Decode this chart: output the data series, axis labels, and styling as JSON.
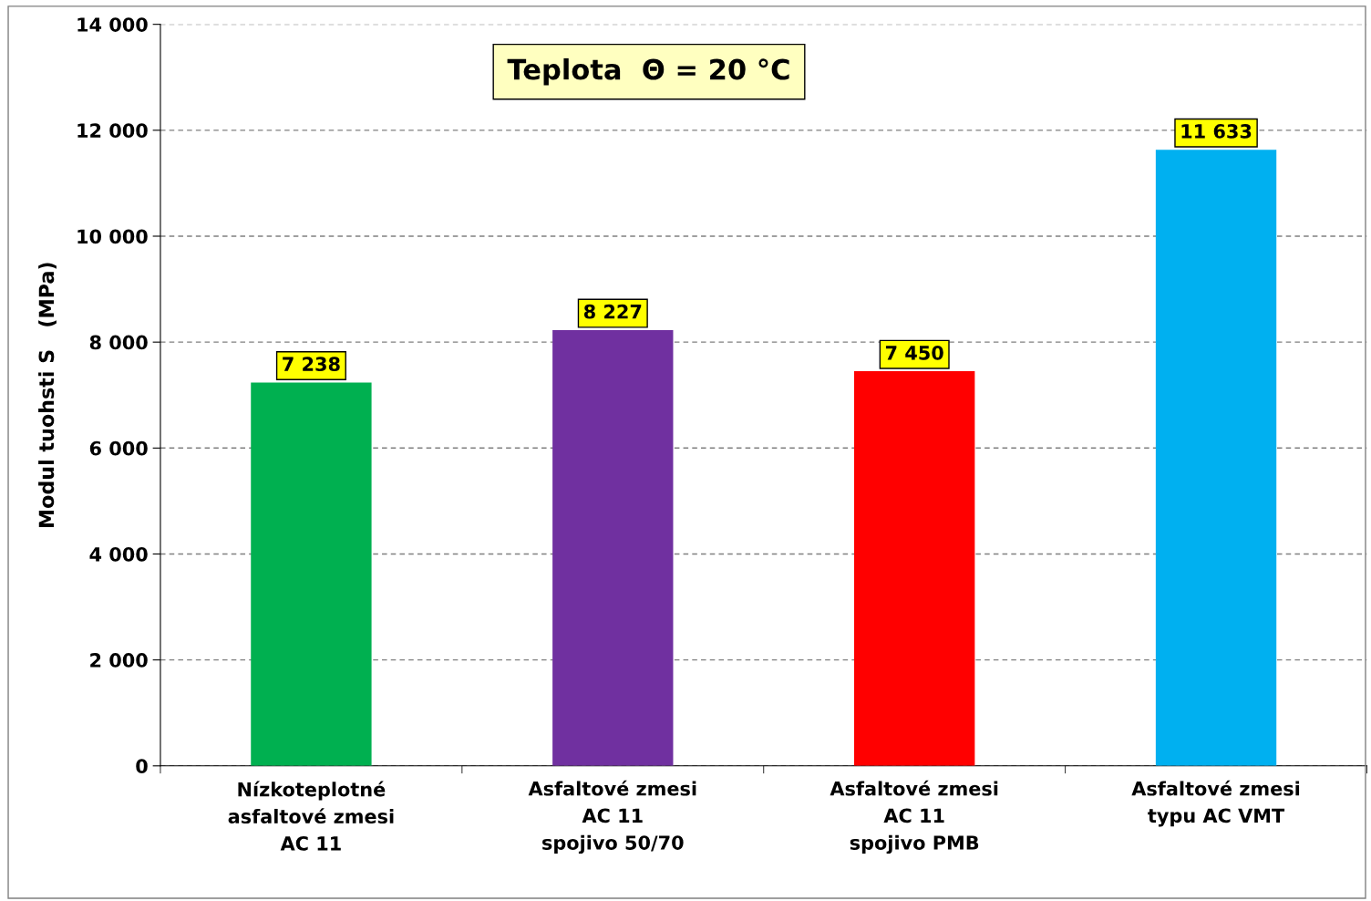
{
  "chart_data": {
    "type": "bar",
    "title": "Teplota  Θ = 20 °C",
    "ylabel": "Modul tuohsti S   (MPa)",
    "categories": [
      "Nízkoteplotné\nasfaltové zmesi\nAC 11",
      "Asfaltové zmesi\nAC 11\nspojivo 50/70",
      "Asfaltové zmesi\nAC 11\nspojivo PMB",
      "Asfaltové zmesi\ntypu AC VMT"
    ],
    "values": [
      7238,
      8227,
      7450,
      11633
    ],
    "colors": [
      "#00b050",
      "#7030a0",
      "#ff0000",
      "#00b0f0"
    ],
    "value_labels": [
      "7 238",
      "8 227",
      "7 450",
      "11 633"
    ],
    "ylim": [
      0,
      14000
    ],
    "yticks": [
      0,
      {
        "value": 2000,
        "label": "2 000"
      },
      {
        "value": 4000,
        "label": "4 000"
      },
      {
        "value": 6000,
        "label": "6 000"
      },
      {
        "value": 8000,
        "label": "8 000"
      },
      {
        "value": 10000,
        "label": "10 000"
      },
      {
        "value": 12000,
        "label": "12 000"
      },
      {
        "value": 14000,
        "label": "14 000"
      }
    ],
    "grid": "y",
    "legend": false
  }
}
